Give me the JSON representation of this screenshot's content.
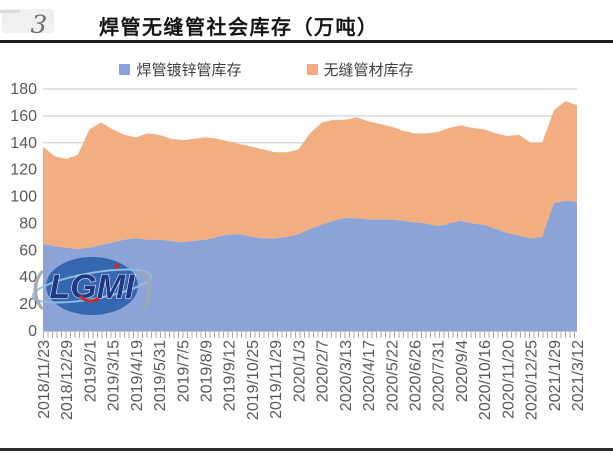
{
  "figure": {
    "mark": "3",
    "title": "焊管无缝管社会库存（万吨）"
  },
  "legend": [
    {
      "label": "焊管镀锌管库存",
      "color": "#8ba3d6"
    },
    {
      "label": "无缝管材库存",
      "color": "#f2ae80"
    }
  ],
  "watermark": {
    "text": "LGMI",
    "left_paren": "(",
    "right_paren": ")"
  },
  "colors": {
    "welded_area": "#8ba3d6",
    "seamless_area": "#f2ae80",
    "gridline": "#d2d2d2",
    "axis_text": "#595959",
    "tick_comb": "#ababab"
  },
  "chart_data": {
    "type": "area",
    "stacked": true,
    "title": "焊管无缝管社会库存（万吨）",
    "unit": "万吨",
    "grid": true,
    "legend_position": "top",
    "ylim": [
      0,
      180
    ],
    "y_ticks": [
      0,
      20,
      40,
      60,
      80,
      100,
      120,
      140,
      160,
      180
    ],
    "categories": [
      "2018/11/23",
      "2018/12/29",
      "2019/2/1",
      "2019/3/15",
      "2019/4/19",
      "2019/5/31",
      "2019/7/5",
      "2019/8/9",
      "2019/9/12",
      "2019/10/25",
      "2019/11/29",
      "2020/1/3",
      "2020/2/7",
      "2020/3/13",
      "2020/4/17",
      "2020/5/22",
      "2020/6/26",
      "2020/7/31",
      "2020/9/4",
      "2020/10/16",
      "2020/11/20",
      "2020/12/25",
      "2021/1/29",
      "2021/3/12"
    ],
    "label_every_nth_point": 2,
    "series": [
      {
        "name": "焊管镀锌管库存",
        "color": "#8ba3d6",
        "values": [
          65,
          63,
          62,
          61,
          62,
          64,
          66,
          68,
          69,
          68,
          68,
          67,
          66,
          67,
          68,
          70,
          72,
          72,
          70,
          69,
          69,
          70,
          72,
          76,
          79,
          82,
          84,
          84,
          83,
          83,
          83,
          82,
          81,
          80,
          78,
          80,
          82,
          80,
          79,
          76,
          73,
          71,
          69,
          70,
          95,
          97,
          96
        ]
      },
      {
        "name": "无缝管材库存",
        "color": "#f2ae80",
        "values": [
          72,
          67,
          66,
          70,
          88,
          91,
          84,
          78,
          75,
          79,
          78,
          76,
          76,
          76,
          76,
          73,
          69,
          67,
          67,
          66,
          64,
          63,
          63,
          71,
          76,
          75,
          73,
          75,
          73,
          71,
          69,
          67,
          66,
          67,
          70,
          71,
          71,
          71,
          71,
          71,
          72,
          75,
          71,
          70,
          69,
          74,
          72
        ]
      }
    ]
  }
}
